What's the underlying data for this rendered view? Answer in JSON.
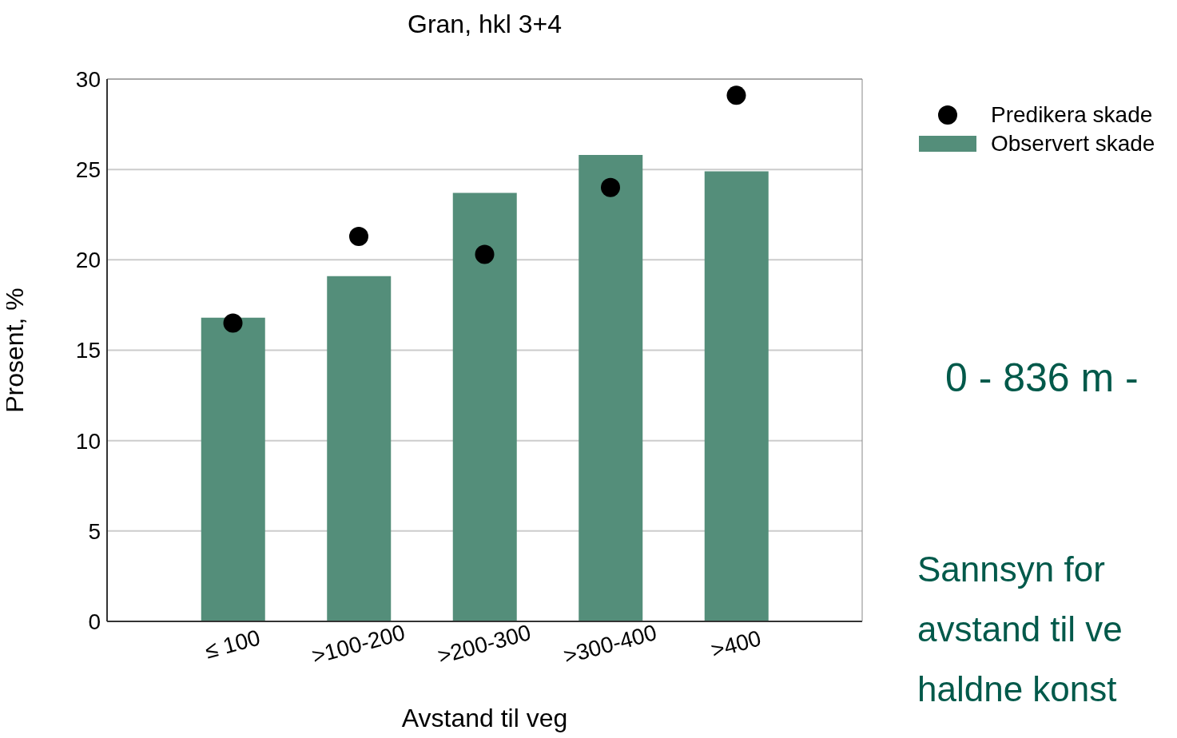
{
  "chart_data": {
    "type": "bar",
    "title": "Gran, hkl 3+4",
    "xlabel": "Avstand til veg",
    "ylabel": "Prosent, %",
    "categories": [
      "≤ 100",
      ">100-200",
      ">200-300",
      ">300-400",
      ">400"
    ],
    "series": [
      {
        "name": "Predikera skade",
        "type": "scatter",
        "color": "#000000",
        "marker": "circle",
        "values": [
          16.5,
          21.3,
          20.3,
          24.0,
          29.1
        ]
      },
      {
        "name": "Observert skade",
        "color": "#548e7a",
        "values": [
          16.8,
          19.1,
          23.7,
          25.8,
          24.9
        ]
      }
    ],
    "ylim": [
      0,
      30
    ],
    "yticks": [
      0,
      5,
      10,
      15,
      20,
      25,
      30
    ],
    "grid": "y",
    "legend": "top right",
    "annotations": [
      "0 - 836 m  -",
      "Sannsyn for",
      "avstand til ve",
      "haldne konst"
    ]
  }
}
